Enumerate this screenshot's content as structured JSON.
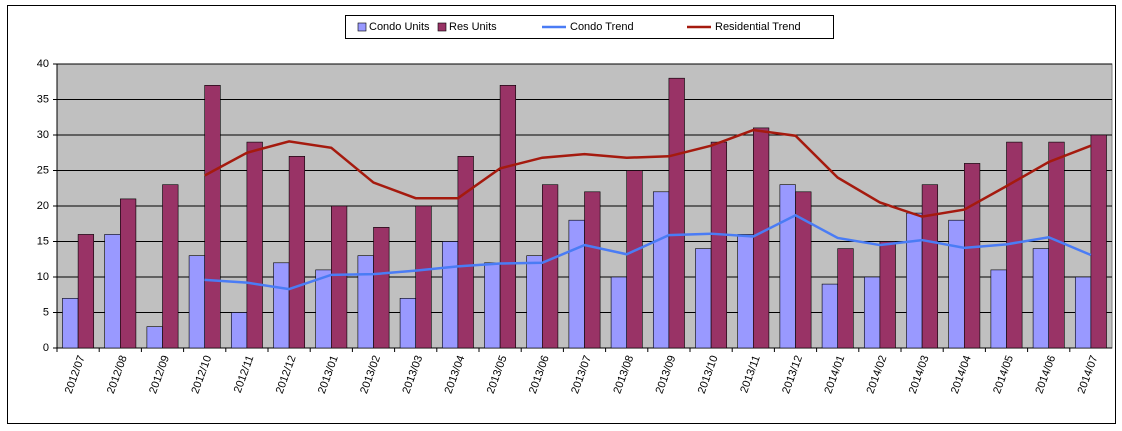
{
  "chart_data": {
    "type": "bar-line",
    "categories": [
      "2012/07",
      "2012/08",
      "2012/09",
      "2012/10",
      "2012/11",
      "2012/12",
      "2013/01",
      "2013/02",
      "2013/03",
      "2013/04",
      "2013/05",
      "2013/06",
      "2013/07",
      "2013/08",
      "2013/09",
      "2013/10",
      "2013/11",
      "2013/12",
      "2014/01",
      "2014/02",
      "2014/03",
      "2014/04",
      "2014/05",
      "2014/06",
      "2014/07"
    ],
    "series": [
      {
        "name": "Condo Units",
        "kind": "bar",
        "color": "#9999ff",
        "values": [
          7,
          16,
          3,
          13,
          5,
          12,
          11,
          13,
          7,
          15,
          12,
          13,
          18,
          10,
          22,
          14,
          16,
          23,
          9,
          10,
          19,
          18,
          11,
          14,
          10
        ]
      },
      {
        "name": "Res Units",
        "kind": "bar",
        "color": "#993366",
        "values": [
          16,
          21,
          23,
          37,
          29,
          27,
          20,
          17,
          20,
          27,
          37,
          23,
          22,
          25,
          38,
          29,
          31,
          22,
          14,
          15,
          23,
          26,
          29,
          29,
          30
        ]
      },
      {
        "name": "Condo Trend",
        "kind": "line",
        "color": "#4a7cf5",
        "values": [
          null,
          null,
          null,
          9.6,
          9.2,
          8.3,
          10.3,
          10.4,
          10.9,
          11.5,
          11.9,
          12.0,
          14.5,
          13.2,
          15.9,
          16.1,
          15.7,
          18.7,
          15.5,
          14.5,
          15.2,
          14.1,
          14.6,
          15.6,
          13.1
        ]
      },
      {
        "name": "Residential Trend",
        "kind": "line",
        "color": "#a51a0e",
        "values": [
          null,
          null,
          null,
          24.3,
          27.5,
          29.1,
          28.2,
          23.3,
          21.1,
          21.1,
          25.3,
          26.8,
          27.3,
          26.8,
          27.0,
          28.5,
          30.7,
          29.9,
          24.0,
          20.5,
          18.5,
          19.5,
          22.8,
          26.2,
          28.5
        ]
      }
    ],
    "ylim": [
      0,
      40
    ],
    "yticks": [
      0,
      5,
      10,
      15,
      20,
      25,
      30,
      35,
      40
    ],
    "grid": true,
    "legend": "top"
  }
}
